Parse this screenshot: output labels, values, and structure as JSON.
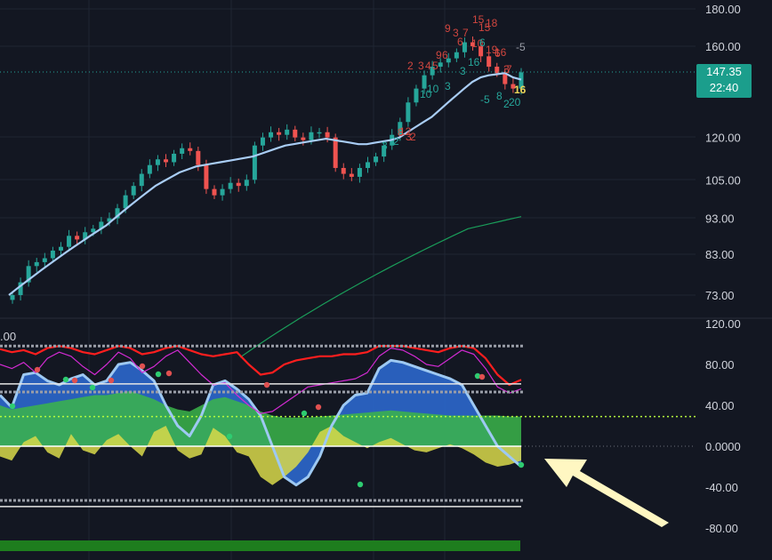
{
  "colors": {
    "background": "#131722",
    "up_candle": "#26a69a",
    "down_candle": "#ef5350",
    "ma_fast": "#a9cdf5",
    "ma_slow": "#1a9e5a",
    "osc_blue": "#2a63c4",
    "osc_light_blue": "#9ec9f2",
    "osc_green": "#3bb54a",
    "osc_dark_green": "#228b22",
    "osc_yellow": "#d9d94a",
    "lime_line": "#b6ff3d",
    "red_line": "#ff1e1e",
    "magenta_line": "#d22ad2",
    "arrow": "#fff7c2",
    "price_tag": "#1b9e8c"
  },
  "price_tag": {
    "price": "147.35",
    "countdown": "22:40"
  },
  "bottom_pane_left_label": ".00",
  "chart_data": [
    {
      "type": "candlestick",
      "pane": "price",
      "y_ticks": [
        "180.00",
        "160.00",
        "120.00",
        "105.00",
        "93.00",
        "83.00",
        "73.00"
      ],
      "y_scale": "log",
      "current_price": 147.35,
      "annotations_red": [
        "-5",
        "9",
        "3",
        "7",
        "15",
        "18",
        "15",
        "6",
        "5",
        "4",
        "3",
        "9",
        "6",
        "10",
        "6",
        "2",
        "8",
        "19",
        "16",
        "3",
        "7",
        "12",
        "3",
        "2"
      ],
      "annotations_green": [
        "10",
        "3",
        "3",
        "-5",
        "2",
        "16",
        "8",
        "6",
        "3",
        "2",
        "10",
        "20"
      ],
      "annotation_highlight": "16",
      "series": [
        {
          "name": "",
          "type": "candles",
          "close": [
            73,
            76,
            80,
            81,
            82,
            84,
            85,
            88,
            87,
            89,
            90,
            92,
            93,
            96,
            100,
            103,
            107,
            110,
            112,
            111,
            114,
            116,
            115,
            110,
            102,
            100,
            102,
            104,
            103,
            105,
            117,
            120,
            122,
            121,
            123,
            120,
            119,
            122,
            122,
            120,
            109,
            107,
            106,
            109,
            111,
            113,
            117,
            121,
            126,
            134,
            140,
            146,
            150,
            152,
            154,
            157,
            162,
            160,
            155,
            150,
            147,
            142,
            140,
            147.35
          ]
        },
        {
          "name": "",
          "type": "line",
          "style": "fast moving average",
          "values": [
            73,
            74.5,
            76,
            77.5,
            79,
            80.5,
            82,
            83.5,
            85,
            86.5,
            88,
            89.5,
            91,
            93,
            95,
            97,
            99,
            101,
            103,
            104.5,
            106,
            107.5,
            108.5,
            109.5,
            110,
            110.5,
            111,
            111.5,
            112,
            112.5,
            113,
            114,
            115,
            116,
            117,
            117.5,
            118,
            118.5,
            119,
            119.5,
            119,
            118.5,
            118,
            117.5,
            117.5,
            118,
            118.5,
            119,
            120,
            122,
            124,
            126,
            128,
            131,
            134,
            137,
            140,
            143,
            145,
            146,
            146.5,
            147,
            145,
            144
          ]
        },
        {
          "name": "",
          "type": "line",
          "style": "slow moving average",
          "values": [
            60,
            61,
            62,
            63,
            64,
            65,
            66,
            67,
            68,
            69,
            70,
            71,
            72,
            73,
            74,
            75,
            76,
            77,
            78,
            79,
            80,
            81,
            82,
            83,
            84,
            85,
            86,
            87,
            88,
            89,
            90,
            90.5,
            91,
            91.5,
            92,
            92.5,
            93,
            93.5
          ]
        }
      ]
    },
    {
      "type": "area",
      "pane": "oscillator",
      "y_ticks": [
        "120.00",
        "80.00",
        "40.00",
        "0.0000",
        "-40.00",
        "-80.00"
      ],
      "ylim": [
        -100,
        120
      ],
      "reference_levels": [
        98,
        61,
        53,
        29,
        0,
        -53,
        -59
      ],
      "series": [
        {
          "name": "",
          "color_key": "red_line",
          "values": [
            95,
            92,
            94,
            90,
            96,
            98,
            96,
            92,
            90,
            94,
            98,
            96,
            90,
            92,
            96,
            98,
            94,
            90,
            88,
            90,
            92,
            80,
            70,
            72,
            80,
            84,
            86,
            88,
            88,
            90,
            90,
            92,
            98,
            98,
            98,
            96,
            94,
            92,
            96,
            98,
            96,
            86,
            70,
            60,
            65
          ]
        },
        {
          "name": "",
          "color_key": "magenta_line",
          "values": [
            80,
            76,
            82,
            72,
            86,
            92,
            88,
            78,
            70,
            80,
            92,
            86,
            72,
            78,
            88,
            94,
            82,
            70,
            60,
            62,
            50,
            40,
            32,
            34,
            42,
            50,
            58,
            60,
            62,
            64,
            66,
            72,
            88,
            96,
            94,
            88,
            80,
            78,
            86,
            94,
            90,
            76,
            58,
            52,
            56
          ]
        },
        {
          "name": "",
          "color_key": "osc_blue",
          "values": [
            50,
            38,
            70,
            72,
            64,
            60,
            66,
            70,
            60,
            64,
            80,
            82,
            74,
            64,
            40,
            20,
            10,
            30,
            60,
            64,
            56,
            46,
            30,
            0,
            -30,
            -38,
            -30,
            -10,
            20,
            40,
            50,
            52,
            76,
            84,
            82,
            78,
            74,
            70,
            66,
            60,
            40,
            20,
            0,
            -10,
            -20
          ]
        },
        {
          "name": "",
          "color_key": "osc_green",
          "values": [
            40,
            36,
            38,
            40,
            42,
            44,
            46,
            48,
            50,
            50,
            52,
            54,
            50,
            46,
            40,
            36,
            34,
            40,
            46,
            48,
            44,
            40,
            34,
            30,
            28,
            28,
            28,
            29,
            30,
            31,
            32,
            33,
            34,
            35,
            34,
            33,
            32,
            31,
            30,
            30,
            30,
            30,
            30,
            29,
            29
          ]
        },
        {
          "name": "",
          "color_key": "osc_yellow",
          "values": [
            -10,
            -14,
            4,
            10,
            -6,
            -12,
            12,
            -4,
            -8,
            6,
            12,
            0,
            -10,
            14,
            20,
            -4,
            -12,
            -8,
            18,
            10,
            -6,
            -10,
            -30,
            -38,
            -30,
            -20,
            -6,
            14,
            20,
            10,
            4,
            -2,
            4,
            8,
            2,
            -4,
            -6,
            -2,
            2,
            -2,
            -8,
            -16,
            -20,
            -18,
            -14
          ]
        }
      ]
    }
  ]
}
